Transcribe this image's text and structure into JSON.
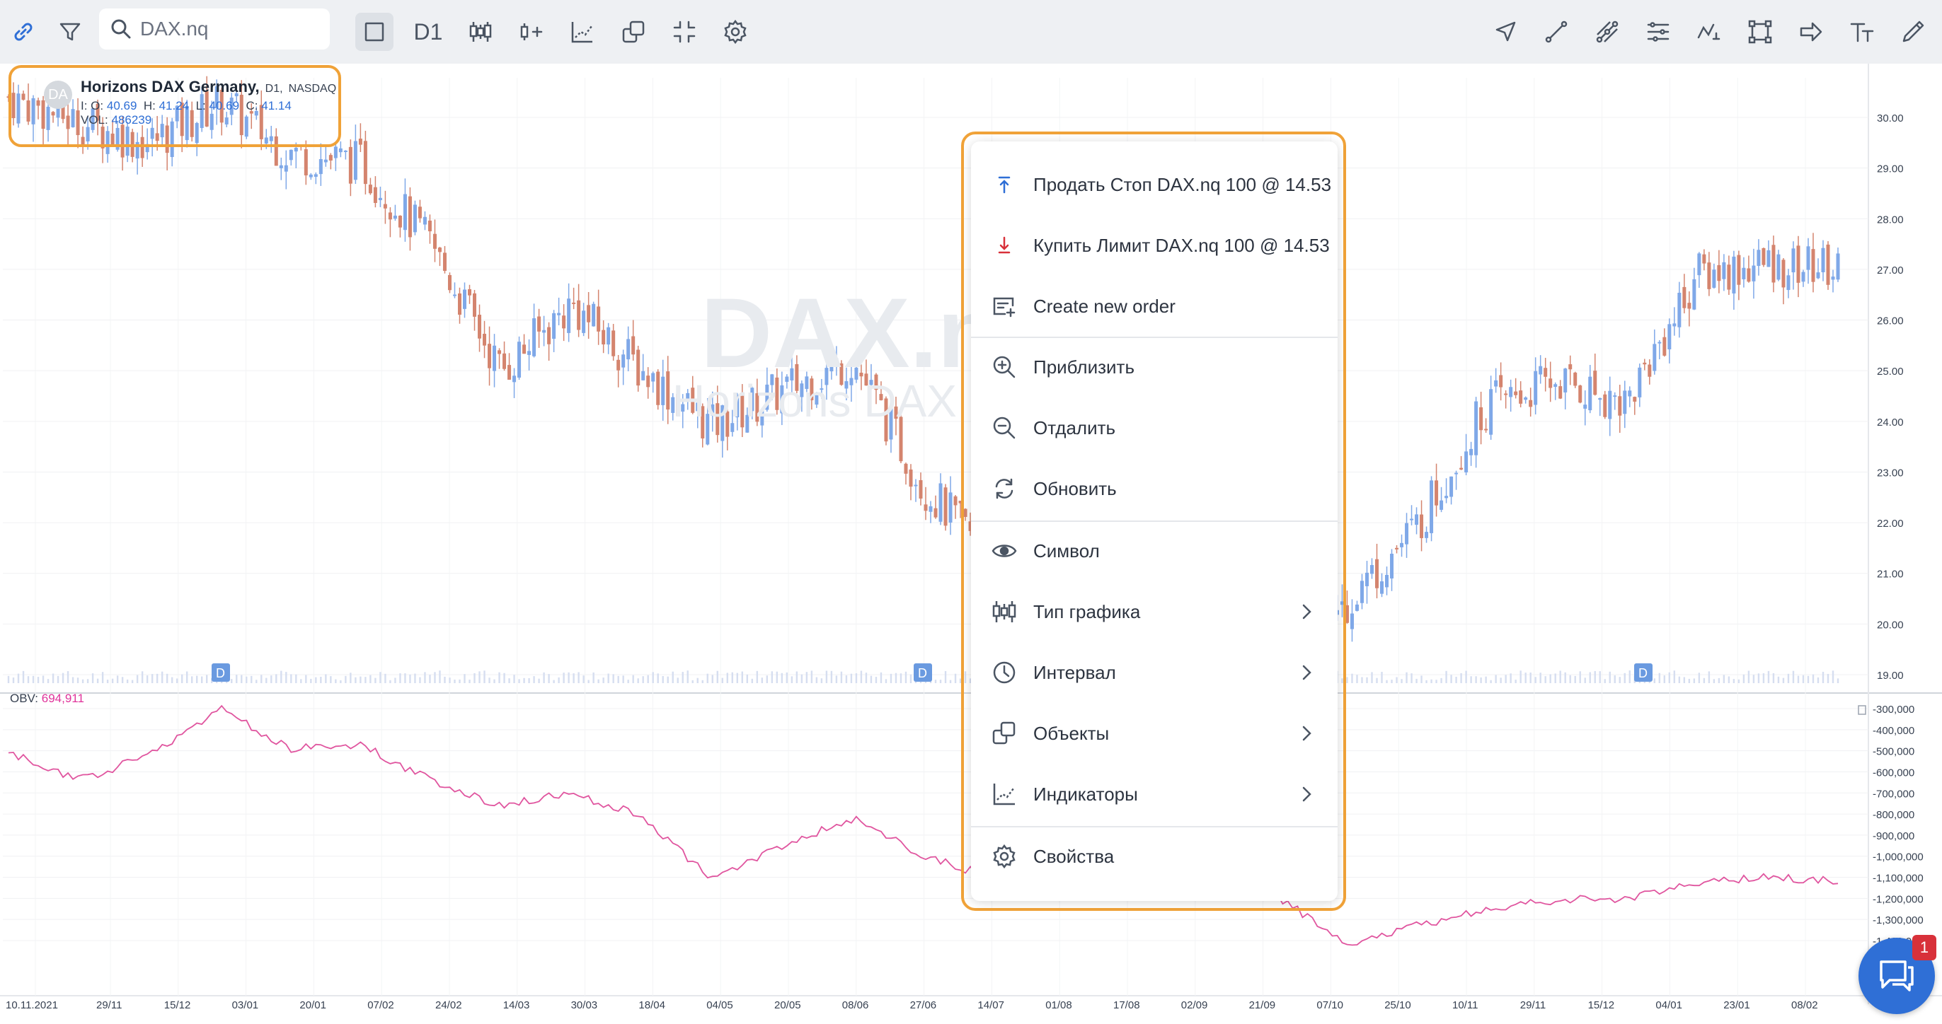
{
  "toolbar": {
    "search_value": "DAX.nq",
    "interval": "D1"
  },
  "legend": {
    "avatar": "DA",
    "name": "Horizons DAX Germany,",
    "timeframe": "D1,",
    "exchange": "NASDAQ",
    "o_label": "I: O:",
    "o": "40.69",
    "h_label": "H:",
    "h": "41.24",
    "l_label": "L:",
    "l": "40.69",
    "c_label": "C:",
    "c": "41.14",
    "vol_label": "VOL:",
    "vol": "486239"
  },
  "watermark": {
    "symbol": "DAX.nq",
    "name": "Horizons DAX Germany"
  },
  "obv": {
    "label": "OBV:",
    "value": "694,911"
  },
  "price_axis": [
    "30.00",
    "29.00",
    "28.00",
    "27.00",
    "26.00",
    "25.00",
    "24.00",
    "23.00",
    "22.00",
    "21.00",
    "20.00",
    "19.00"
  ],
  "obv_axis": [
    "-300,000",
    "-400,000",
    "-500,000",
    "-600,000",
    "-700,000",
    "-800,000",
    "-900,000",
    "-1,000,000",
    "-1,100,000",
    "-1,200,000",
    "-1,300,000",
    "-1,400,000"
  ],
  "time_axis": [
    "10.11.2021",
    "29/11",
    "15/12",
    "03/01",
    "20/01",
    "07/02",
    "24/02",
    "14/03",
    "30/03",
    "18/04",
    "04/05",
    "20/05",
    "08/06",
    "27/06",
    "14/07",
    "01/08",
    "17/08",
    "02/09",
    "21/09",
    "07/10",
    "25/10",
    "10/11",
    "29/11",
    "15/12",
    "04/01",
    "23/01",
    "08/02"
  ],
  "dividend_markers": [
    "D",
    "D",
    "D"
  ],
  "context_menu": {
    "items": [
      {
        "label": "Продать Стоп DAX.nq 100 @ 14.53"
      },
      {
        "label": "Купить Лимит DAX.nq 100 @ 14.53"
      },
      {
        "label": "Create new order"
      },
      {
        "label": "Приблизить"
      },
      {
        "label": "Отдалить"
      },
      {
        "label": "Обновить"
      },
      {
        "label": "Символ"
      },
      {
        "label": "Тип графика"
      },
      {
        "label": "Интервал"
      },
      {
        "label": "Объекты"
      },
      {
        "label": "Индикаторы"
      },
      {
        "label": "Свойства"
      }
    ]
  },
  "chat": {
    "badge": "1"
  },
  "colors": {
    "bull": "#7fa8e8",
    "bear": "#d4846e",
    "obv_line": "#e0559f",
    "accent": "#2f6fd6",
    "highlight": "#f0a238"
  },
  "chart_data": {
    "type": "candlestick",
    "symbol": "DAX.nq",
    "x": [
      "10.11.2021",
      "29/11",
      "15/12",
      "03/01",
      "20/01",
      "07/02",
      "24/02",
      "14/03",
      "30/03",
      "18/04",
      "04/05",
      "20/05",
      "08/06",
      "27/06",
      "14/07",
      "01/08",
      "17/08",
      "02/09",
      "21/09",
      "07/10",
      "25/10",
      "10/11",
      "29/11",
      "15/12",
      "04/01",
      "23/01",
      "08/02"
    ],
    "close": [
      30.4,
      29.9,
      29.5,
      30.3,
      29.3,
      29.1,
      27.5,
      25.0,
      26.3,
      25.0,
      23.9,
      24.6,
      25.2,
      22.7,
      21.3,
      21.0,
      20.4,
      19.8,
      19.3,
      20.4,
      21.9,
      24.3,
      24.8,
      24.4,
      26.9,
      27.1,
      27.0
    ],
    "obv": [
      -510000,
      -640000,
      -520000,
      -300000,
      -490000,
      -470000,
      -640000,
      -760000,
      -700000,
      -810000,
      -1110000,
      -950000,
      -820000,
      -1000000,
      -1100000,
      -1150000,
      -1180000,
      -1180000,
      -1180000,
      -1420000,
      -1330000,
      -1250000,
      -1210000,
      -1200000,
      -1130000,
      -1100000,
      -1120000
    ],
    "ylim": [
      19.0,
      30.5
    ],
    "obv_ylim": [
      -1400000,
      -300000
    ]
  }
}
